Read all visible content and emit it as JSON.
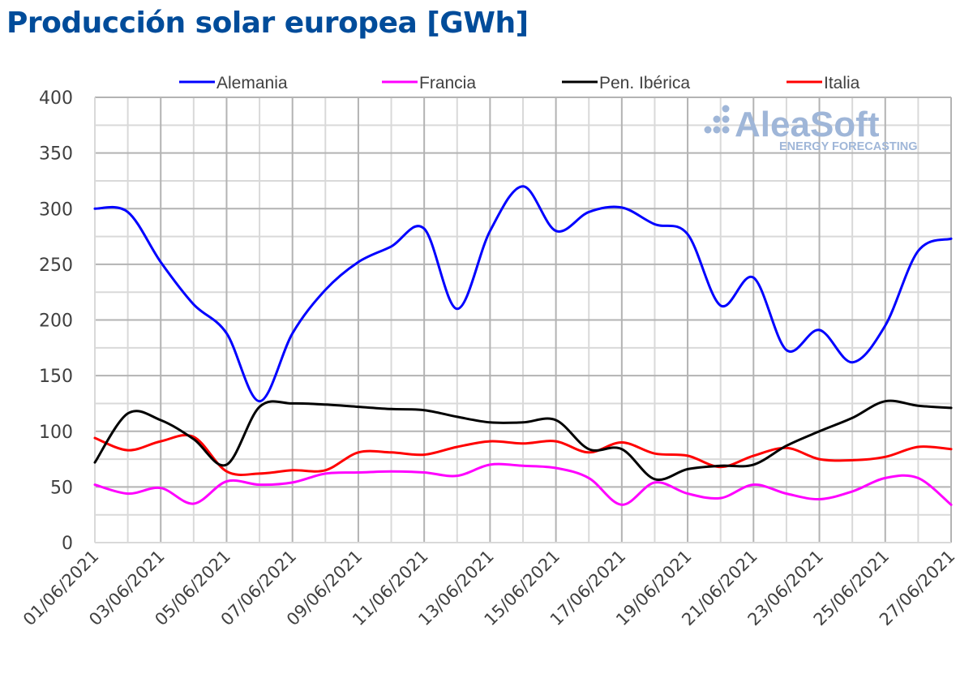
{
  "title": "Producción solar europea [GWh]",
  "watermark": {
    "brand": "AleaSoft",
    "tagline": "ENERGY FORECASTING",
    "color": "#9fb6d8"
  },
  "chart_data": {
    "type": "line",
    "title": "Producción solar europea [GWh]",
    "xlabel": "",
    "ylabel": "",
    "ylim": [
      0,
      400
    ],
    "yticks": [
      0,
      50,
      100,
      150,
      200,
      250,
      300,
      350,
      400
    ],
    "grid": true,
    "legend_position": "top",
    "x": [
      "01/06/2021",
      "02/06/2021",
      "03/06/2021",
      "04/06/2021",
      "05/06/2021",
      "06/06/2021",
      "07/06/2021",
      "08/06/2021",
      "09/06/2021",
      "10/06/2021",
      "11/06/2021",
      "12/06/2021",
      "13/06/2021",
      "14/06/2021",
      "15/06/2021",
      "16/06/2021",
      "17/06/2021",
      "18/06/2021",
      "19/06/2021",
      "20/06/2021",
      "21/06/2021",
      "22/06/2021",
      "23/06/2021",
      "24/06/2021",
      "25/06/2021",
      "26/06/2021",
      "27/06/2021"
    ],
    "xtick_labels": [
      "01/06/2021",
      "03/06/2021",
      "05/06/2021",
      "07/06/2021",
      "09/06/2021",
      "11/06/2021",
      "13/06/2021",
      "15/06/2021",
      "17/06/2021",
      "19/06/2021",
      "21/06/2021",
      "23/06/2021",
      "25/06/2021",
      "27/06/2021"
    ],
    "series": [
      {
        "name": "Alemania",
        "color": "#0000ff",
        "values": [
          300,
          297,
          252,
          214,
          188,
          127,
          188,
          227,
          252,
          266,
          282,
          210,
          280,
          320,
          280,
          297,
          301,
          286,
          277,
          213,
          238,
          173,
          191,
          162,
          195,
          262,
          273
        ]
      },
      {
        "name": "Francia",
        "color": "#ff00ff",
        "values": [
          52,
          44,
          49,
          35,
          55,
          52,
          54,
          62,
          63,
          64,
          63,
          60,
          70,
          69,
          67,
          58,
          34,
          54,
          44,
          40,
          52,
          44,
          39,
          46,
          58,
          58,
          34
        ]
      },
      {
        "name": "Pen. Ibérica",
        "color": "#000000",
        "values": [
          72,
          116,
          110,
          93,
          70,
          122,
          125,
          124,
          122,
          120,
          119,
          113,
          108,
          108,
          110,
          84,
          84,
          57,
          66,
          69,
          70,
          87,
          100,
          112,
          127,
          123,
          121
        ]
      },
      {
        "name": "Italia",
        "color": "#ff0000",
        "values": [
          94,
          83,
          91,
          95,
          64,
          62,
          65,
          65,
          81,
          81,
          79,
          86,
          91,
          89,
          91,
          81,
          90,
          80,
          78,
          68,
          78,
          85,
          75,
          74,
          77,
          86,
          84
        ]
      }
    ]
  }
}
